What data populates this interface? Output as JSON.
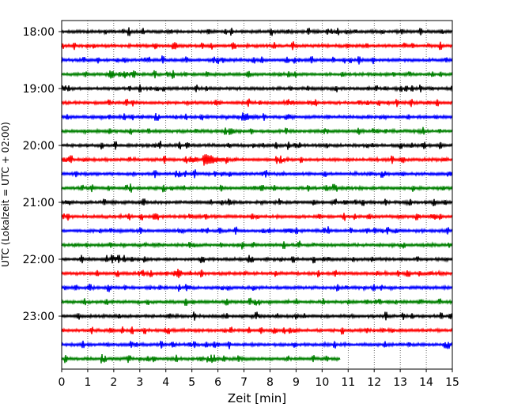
{
  "chart_data": {
    "type": "line",
    "title": "",
    "xlabel": "Zeit  [min]",
    "ylabel": "UTC (Lokalzeit = UTC + 02:00)",
    "xlim": [
      0,
      15
    ],
    "x_ticks": [
      "0",
      "1",
      "2",
      "3",
      "4",
      "5",
      "6",
      "7",
      "8",
      "9",
      "10",
      "11",
      "12",
      "13",
      "14",
      "15"
    ],
    "y_ticks": [
      "18:00",
      "19:00",
      "20:00",
      "21:00",
      "22:00",
      "23:00"
    ],
    "grid": "vertical dotted",
    "colors": [
      "#000000",
      "#ff0000",
      "#0000ff",
      "#008000"
    ],
    "traces": [
      {
        "start": "17:45",
        "end_min": 15
      },
      {
        "start": "18:00",
        "end_min": 15
      },
      {
        "start": "18:15",
        "end_min": 15
      },
      {
        "start": "18:30",
        "end_min": 15
      },
      {
        "start": "18:45",
        "end_min": 15
      },
      {
        "start": "19:00",
        "end_min": 15
      },
      {
        "start": "19:15",
        "end_min": 15
      },
      {
        "start": "19:30",
        "end_min": 15
      },
      {
        "start": "19:45",
        "end_min": 15
      },
      {
        "start": "20:00",
        "end_min": 15
      },
      {
        "start": "20:15",
        "end_min": 15
      },
      {
        "start": "20:30",
        "end_min": 15
      },
      {
        "start": "20:45",
        "end_min": 15
      },
      {
        "start": "21:00",
        "end_min": 15
      },
      {
        "start": "21:15",
        "end_min": 15
      },
      {
        "start": "21:30",
        "end_min": 15
      },
      {
        "start": "21:45",
        "end_min": 15
      },
      {
        "start": "22:00",
        "end_min": 15
      },
      {
        "start": "22:15",
        "end_min": 15
      },
      {
        "start": "22:30",
        "end_min": 15
      },
      {
        "start": "22:45",
        "end_min": 15
      },
      {
        "start": "23:00",
        "end_min": 15
      },
      {
        "start": "23:15",
        "end_min": 15
      },
      {
        "start": "23:30",
        "end_min": 10.7
      }
    ],
    "events": [
      {
        "trace": 6,
        "x": 7.0,
        "size": 3
      },
      {
        "trace": 6,
        "x": 8.7,
        "size": 2
      },
      {
        "trace": 9,
        "x": 5.5,
        "size": 4
      },
      {
        "trace": 9,
        "x": 5.0,
        "size": 2
      },
      {
        "trace": 13,
        "x": 9.9,
        "size": 1.5
      },
      {
        "trace": 13,
        "x": 13.0,
        "size": 1.5
      },
      {
        "trace": 17,
        "x": 4.4,
        "size": 1.5
      },
      {
        "trace": 14,
        "x": 8.8,
        "size": 1.5
      },
      {
        "trace": 21,
        "x": 9.0,
        "size": 1.5
      },
      {
        "trace": 21,
        "x": 1.9,
        "size": 1.5
      }
    ]
  }
}
